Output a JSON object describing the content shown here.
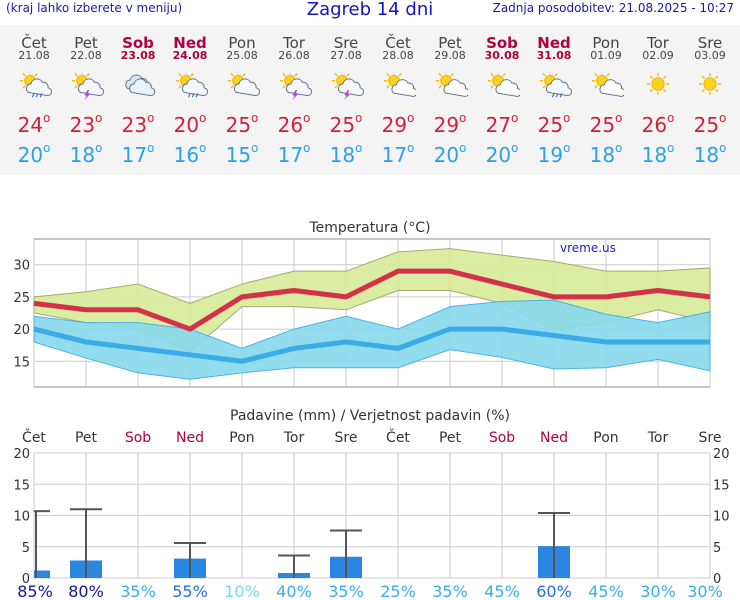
{
  "header": {
    "left_note": "(kraj lahko izberete v meniju)",
    "title": "Zagreb 14 dni",
    "updated": "Zadnja posodobitev: 21.08.2025 - 10:27"
  },
  "days": [
    {
      "name": "Čet",
      "date": "21.08",
      "weekend": false,
      "icon": "sun-cloud-rain-icon",
      "max": "24",
      "min": "20"
    },
    {
      "name": "Pet",
      "date": "22.08",
      "weekend": false,
      "icon": "sun-cloud-storm-icon",
      "max": "23",
      "min": "18"
    },
    {
      "name": "Sob",
      "date": "23.08",
      "weekend": true,
      "icon": "cloud-icon",
      "max": "23",
      "min": "17"
    },
    {
      "name": "Ned",
      "date": "24.08",
      "weekend": true,
      "icon": "sun-cloud-rain-icon",
      "max": "20",
      "min": "16"
    },
    {
      "name": "Pon",
      "date": "25.08",
      "weekend": false,
      "icon": "sun-cloud-icon",
      "max": "25",
      "min": "15"
    },
    {
      "name": "Tor",
      "date": "26.08",
      "weekend": false,
      "icon": "sun-cloud-storm-icon",
      "max": "26",
      "min": "17"
    },
    {
      "name": "Sre",
      "date": "27.08",
      "weekend": false,
      "icon": "sun-cloud-storm-icon",
      "max": "25",
      "min": "18"
    },
    {
      "name": "Čet",
      "date": "28.08",
      "weekend": false,
      "icon": "sun-small-cloud-icon",
      "max": "29",
      "min": "17"
    },
    {
      "name": "Pet",
      "date": "29.08",
      "weekend": false,
      "icon": "sun-small-cloud-icon",
      "max": "29",
      "min": "20"
    },
    {
      "name": "Sob",
      "date": "30.08",
      "weekend": true,
      "icon": "sun-small-cloud-icon",
      "max": "27",
      "min": "20"
    },
    {
      "name": "Ned",
      "date": "31.08",
      "weekend": true,
      "icon": "sun-cloud-rain-icon",
      "max": "25",
      "min": "19"
    },
    {
      "name": "Pon",
      "date": "01.09",
      "weekend": false,
      "icon": "sun-small-cloud-icon",
      "max": "25",
      "min": "18"
    },
    {
      "name": "Tor",
      "date": "02.09",
      "weekend": false,
      "icon": "sun-icon",
      "max": "26",
      "min": "18"
    },
    {
      "name": "Sre",
      "date": "03.09",
      "weekend": false,
      "icon": "sun-icon",
      "max": "25",
      "min": "18"
    }
  ],
  "chart_data": [
    {
      "type": "line",
      "title": "Temperatura (°C)",
      "watermark": "vreme.us",
      "ylim": [
        11,
        34
      ],
      "yticks": [
        15,
        20,
        25,
        30
      ],
      "grid": true,
      "colors": {
        "max": "#d3304a",
        "min": "#3aaae8",
        "max_band": "#d7ec9a",
        "min_band": "#88d9ec",
        "overlap": "#7fd07a"
      },
      "series": [
        {
          "values": [
            24,
            23,
            23,
            20,
            25,
            26,
            25,
            29,
            29,
            27,
            25,
            25,
            26,
            25
          ]
        },
        {
          "values": [
            20,
            18,
            17,
            16,
            15,
            17,
            18,
            17,
            20,
            20,
            19,
            18,
            18,
            18
          ]
        }
      ],
      "bands": [
        {
          "upper": [
            25,
            25.8,
            27,
            24,
            27,
            29,
            29,
            32,
            32.5,
            31.5,
            30.5,
            29,
            29,
            29.5
          ],
          "lower": [
            22.5,
            21,
            20,
            16.5,
            23.5,
            23.5,
            23,
            26,
            26,
            24,
            20,
            21,
            23,
            21
          ]
        },
        {
          "upper": [
            22,
            21,
            21,
            20,
            17,
            20,
            22,
            20,
            23.5,
            24.3,
            24.5,
            22.3,
            21,
            22.7
          ],
          "lower": [
            18,
            15.5,
            13.2,
            12.2,
            13.2,
            14,
            14,
            14,
            16.8,
            15.6,
            13.8,
            14,
            15.3,
            13.5
          ]
        }
      ]
    },
    {
      "type": "bar",
      "title": "Padavine (mm) / Verjetnost padavin (%)",
      "ylim": [
        0,
        20
      ],
      "yticks": [
        0,
        5,
        10,
        15,
        20
      ],
      "grid": true,
      "categories": [
        "Čet",
        "Pet",
        "Sob",
        "Ned",
        "Pon",
        "Tor",
        "Sre",
        "Čet",
        "Pet",
        "Sob",
        "Ned",
        "Pon",
        "Tor",
        "Sre"
      ],
      "weekend": [
        false,
        false,
        true,
        true,
        false,
        false,
        false,
        false,
        false,
        true,
        true,
        false,
        false,
        false
      ],
      "values": [
        1.2,
        2.8,
        0,
        3.1,
        0,
        0.8,
        3.4,
        0,
        0,
        0,
        5.1,
        0,
        0,
        0
      ],
      "error_high": [
        10.7,
        11.0,
        0,
        5.6,
        0,
        3.6,
        7.6,
        0,
        0,
        0,
        10.4,
        0,
        0,
        0
      ],
      "probability": [
        "85%",
        "80%",
        "35%",
        "55%",
        "10%",
        "40%",
        "35%",
        "25%",
        "35%",
        "45%",
        "60%",
        "45%",
        "30%",
        "30%"
      ],
      "probability_values": [
        85,
        80,
        35,
        55,
        10,
        40,
        35,
        25,
        35,
        45,
        60,
        45,
        30,
        30
      ],
      "colors": {
        "bar": "#2a86e0",
        "whisker": "#555555"
      }
    }
  ]
}
